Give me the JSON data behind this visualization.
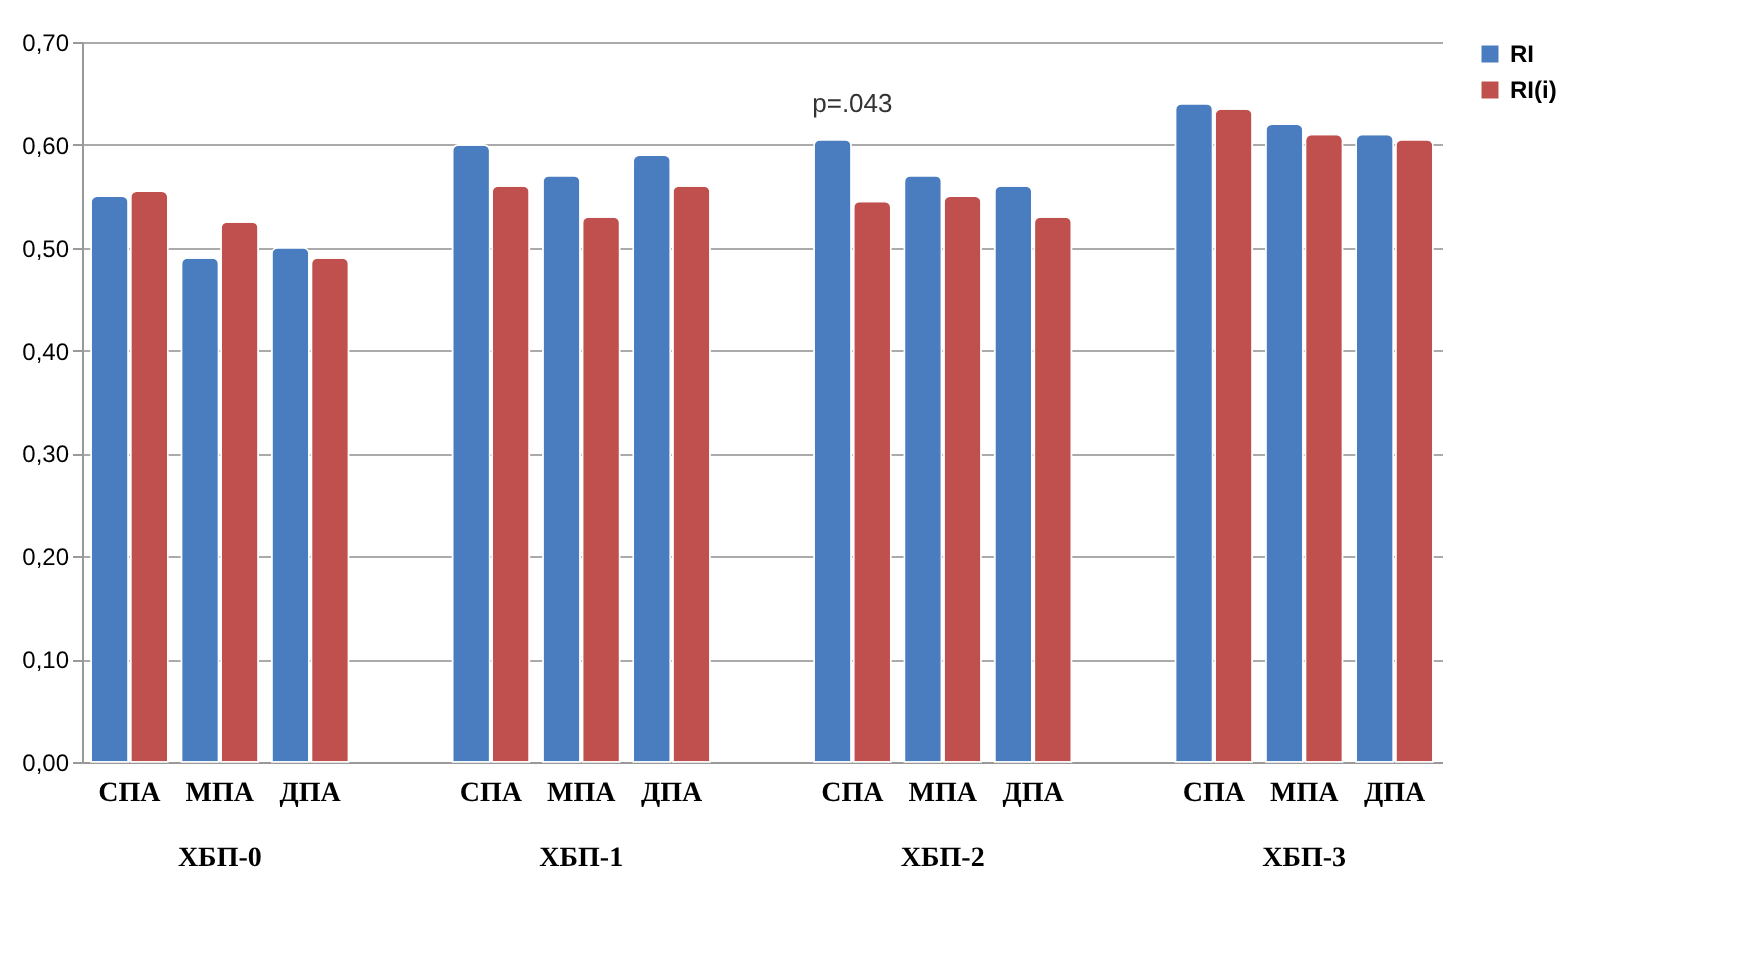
{
  "chart_data": {
    "type": "bar",
    "categories": [
      "СПА",
      "МПА",
      "ДПА",
      "СПА",
      "МПА",
      "ДПА",
      "СПА",
      "МПА",
      "ДПА",
      "СПА",
      "МПА",
      "ДПА"
    ],
    "series": [
      {
        "name": "RI",
        "color": "#4a7cc0",
        "values": [
          0.55,
          0.49,
          0.5,
          0.6,
          0.57,
          0.59,
          0.605,
          0.57,
          0.56,
          0.64,
          0.62,
          0.61
        ]
      },
      {
        "name": "RI(i)",
        "color": "#c0504d",
        "values": [
          0.555,
          0.525,
          0.49,
          0.56,
          0.53,
          0.56,
          0.545,
          0.55,
          0.53,
          0.635,
          0.61,
          0.605
        ]
      }
    ],
    "annotations": [
      "p=.043",
      "ХБП-0",
      "ХБП-1",
      "ХБП-2",
      "ХБП-3"
    ],
    "ylim": [
      0,
      0.7
    ],
    "yticks": [
      {
        "value": 0,
        "label": "0,00"
      },
      {
        "value": 0.1,
        "label": "0,10"
      },
      {
        "value": 0.2,
        "label": "0,20"
      },
      {
        "value": 0.3,
        "label": "0,30"
      },
      {
        "value": 0.4,
        "label": "0,40"
      },
      {
        "value": 0.5,
        "label": "0,50"
      },
      {
        "value": 0.6,
        "label": "0,60"
      },
      {
        "value": 0.7,
        "label": "0,70"
      }
    ],
    "grid": "y",
    "legend": "right"
  }
}
